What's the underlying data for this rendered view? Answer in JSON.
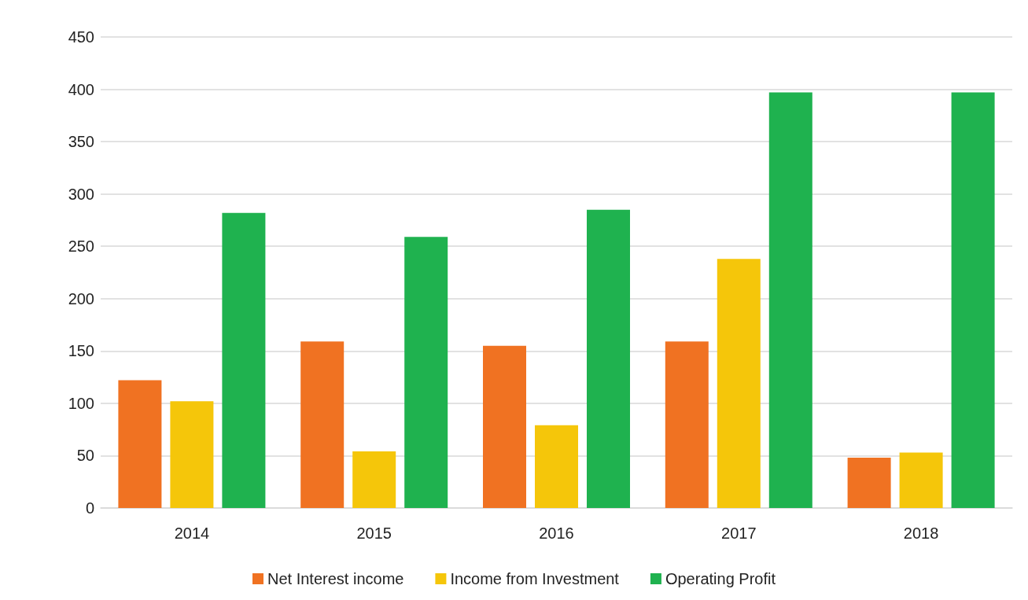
{
  "chart_data": {
    "type": "bar",
    "categories": [
      "2014",
      "2015",
      "2016",
      "2017",
      "2018"
    ],
    "series": [
      {
        "name": "Net Interest income",
        "color": "#f07222",
        "values": [
          122,
          159,
          155,
          159,
          48
        ]
      },
      {
        "name": "Income from Investment",
        "color": "#f5c60a",
        "values": [
          102,
          54,
          79,
          238,
          53
        ]
      },
      {
        "name": "Operating Profit",
        "color": "#1fb24f",
        "values": [
          282,
          259,
          285,
          397,
          397
        ]
      }
    ],
    "ylim": [
      0,
      450
    ],
    "yticks": [
      0,
      50,
      100,
      150,
      200,
      250,
      300,
      350,
      400,
      450
    ],
    "grid": "y",
    "legend": "bottom"
  }
}
